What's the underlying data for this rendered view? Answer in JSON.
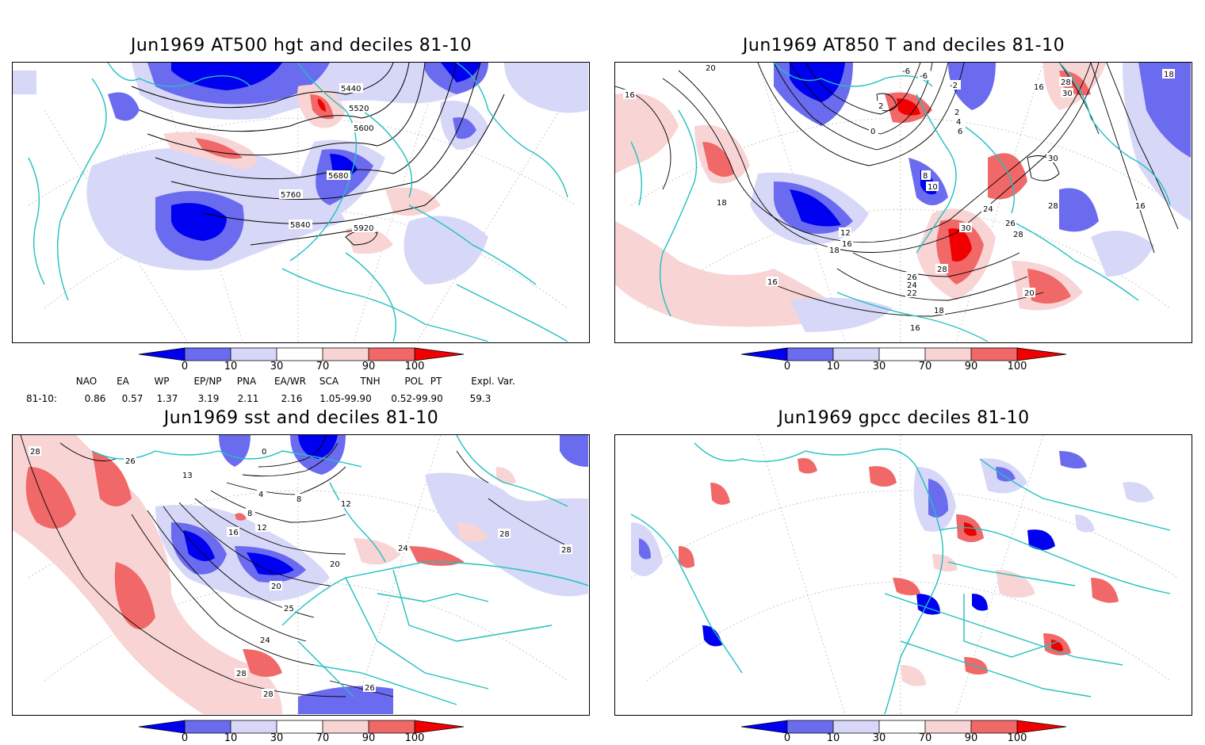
{
  "colors": {
    "deep_blue": "#0000f0",
    "mid_blue": "#6b6bf0",
    "light_blue": "#d7d7f8",
    "light_red": "#f8d4d4",
    "mid_red": "#f06868",
    "deep_red": "#f00000",
    "coast": "#22c0c0",
    "contour": "#000000"
  },
  "panels": [
    {
      "id": "p1",
      "title": "Jun1969 AT500 hgt and deciles 81-10",
      "contour_labels": [
        "5440",
        "5520",
        "5600",
        "5680",
        "5760",
        "5840",
        "5920"
      ]
    },
    {
      "id": "p2",
      "title": "Jun1969 AT850 T and deciles 81-10",
      "contour_labels": [
        "20",
        "16",
        "-6",
        "-6",
        "2",
        "0",
        "-2",
        "2",
        "4",
        "6",
        "16",
        "28",
        "30",
        "18",
        "18",
        "8",
        "10",
        "30",
        "24",
        "26",
        "28",
        "28",
        "16",
        "12",
        "16",
        "18",
        "30",
        "28",
        "26",
        "24",
        "22",
        "20",
        "16",
        "18",
        "16"
      ]
    },
    {
      "id": "p3",
      "title": "Jun1969 sst and deciles 81-10",
      "contour_labels": [
        "28",
        "26",
        "13",
        "0",
        "4",
        "8",
        "12",
        "16",
        "8",
        "12",
        "20",
        "24",
        "20",
        "25",
        "24",
        "28",
        "28",
        "28",
        "28",
        "26"
      ]
    },
    {
      "id": "p4",
      "title": "Jun1969 gpcc deciles 81-10",
      "contour_labels": []
    }
  ],
  "colorbar": {
    "ticks": [
      "0",
      "10",
      "30",
      "70",
      "90",
      "100"
    ]
  },
  "indices": {
    "headers": [
      "NAO",
      "EA",
      "WP",
      "EP/NP",
      "PNA",
      "EA/WR",
      "SCA",
      "TNH",
      "POL",
      "PT",
      "Expl. Var."
    ],
    "row_label": "81-10:",
    "values": [
      "0.86",
      "0.57",
      "1.37",
      "3.19",
      "2.11",
      "2.16",
      "1.05-99.90",
      "0.52-99.90",
      "59.3"
    ]
  }
}
